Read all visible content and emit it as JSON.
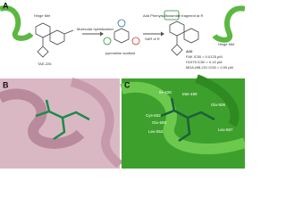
{
  "panel_a": {
    "label": "A",
    "hinge_left": "Hinge Met",
    "lead_name": "TAE-226",
    "arrow_label": "Molecular hybridization",
    "scaffold_name": "pyrimidine scaffold",
    "step_1": "Add Phenylsulfonamide fragment at R",
    "step_2": "SAR of R",
    "compound_name": "A10",
    "activities": [
      "FAK IC50 = 0.0125 μM",
      "H1975 IC50 = 0.15 μM",
      "MDA-MB-231 IC50 = 0.59 μM"
    ],
    "hinge_right": "Hinge Met"
  },
  "panel_b": {
    "label": "B"
  },
  "panel_c": {
    "label": "C",
    "residues": [
      "Ile-428",
      "Met-499",
      "Cys-502",
      "Glu-500",
      "Leu-553",
      "Glu-506",
      "Leu-567"
    ]
  }
}
